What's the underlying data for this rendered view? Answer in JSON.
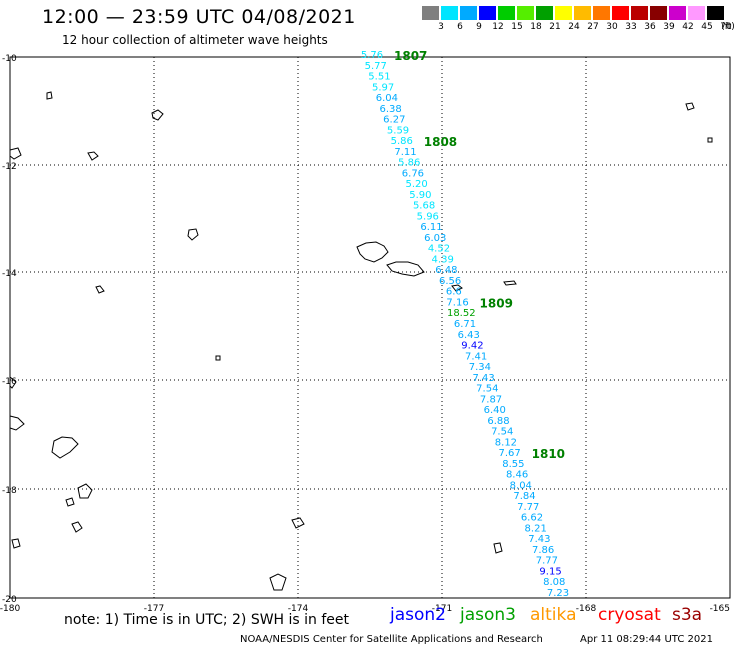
{
  "header": {
    "title": "12:00 — 23:59 UTC 04/08/2021",
    "subtitle": "12 hour collection of altimeter wave heights"
  },
  "scale": {
    "unit": "(ft)",
    "colors": [
      "#7f7f7f",
      "#00e5ff",
      "#00aaff",
      "#0000ff",
      "#00cc00",
      "#55ee00",
      "#00a000",
      "#ffff00",
      "#ffbb00",
      "#ff7700",
      "#ff0000",
      "#bb0000",
      "#880000",
      "#cc00cc",
      "#ff99ff",
      "#000000"
    ],
    "labels": [
      "3",
      "6",
      "9",
      "12",
      "15",
      "18",
      "21",
      "24",
      "27",
      "30",
      "33",
      "36",
      "39",
      "42",
      "45",
      "70"
    ]
  },
  "axes": {
    "lat_labels": [
      "-10",
      "-12",
      "-14",
      "-16",
      "-18",
      "-20"
    ],
    "lon_labels": [
      "-180",
      "-177",
      "-174",
      "-171",
      "-168",
      "-165"
    ]
  },
  "passes": [
    {
      "label": "1807",
      "color": "#008000"
    },
    {
      "label": "1808",
      "color": "#008000"
    },
    {
      "label": "1809",
      "color": "#008000"
    },
    {
      "label": "1810",
      "color": "#008000"
    }
  ],
  "wave_heights": [
    {
      "value": "5.76",
      "color": "#00e5ff"
    },
    {
      "value": "5.77",
      "color": "#00e5ff"
    },
    {
      "value": "5.51",
      "color": "#00e5ff"
    },
    {
      "value": "5.97",
      "color": "#00e5ff"
    },
    {
      "value": "6.04",
      "color": "#00aaff"
    },
    {
      "value": "6.38",
      "color": "#00aaff"
    },
    {
      "value": "6.27",
      "color": "#00aaff"
    },
    {
      "value": "5.59",
      "color": "#00e5ff"
    },
    {
      "value": "5.86",
      "color": "#00e5ff"
    },
    {
      "value": "7.11",
      "color": "#00aaff"
    },
    {
      "value": "5.86",
      "color": "#00e5ff"
    },
    {
      "value": "6.76",
      "color": "#00aaff"
    },
    {
      "value": "5.20",
      "color": "#00e5ff"
    },
    {
      "value": "5.90",
      "color": "#00e5ff"
    },
    {
      "value": "5.68",
      "color": "#00e5ff"
    },
    {
      "value": "5.96",
      "color": "#00e5ff"
    },
    {
      "value": "6.11",
      "color": "#00aaff"
    },
    {
      "value": "6.03",
      "color": "#00aaff"
    },
    {
      "value": "4.52",
      "color": "#00e5ff"
    },
    {
      "value": "4.39",
      "color": "#00e5ff"
    },
    {
      "value": "6.48",
      "color": "#00aaff"
    },
    {
      "value": "6.56",
      "color": "#00aaff"
    },
    {
      "value": "6.6",
      "color": "#00aaff"
    },
    {
      "value": "7.16",
      "color": "#00aaff"
    },
    {
      "value": "18.52",
      "color": "#00a000"
    },
    {
      "value": "6.71",
      "color": "#00aaff"
    },
    {
      "value": "6.43",
      "color": "#00aaff"
    },
    {
      "value": "9.42",
      "color": "#0000ff"
    },
    {
      "value": "7.41",
      "color": "#00aaff"
    },
    {
      "value": "7.34",
      "color": "#00aaff"
    },
    {
      "value": "7.43",
      "color": "#00aaff"
    },
    {
      "value": "7.54",
      "color": "#00aaff"
    },
    {
      "value": "7.87",
      "color": "#00aaff"
    },
    {
      "value": "6.40",
      "color": "#00aaff"
    },
    {
      "value": "6.88",
      "color": "#00aaff"
    },
    {
      "value": "7.54",
      "color": "#00aaff"
    },
    {
      "value": "8.12",
      "color": "#00aaff"
    },
    {
      "value": "7.67",
      "color": "#00aaff"
    },
    {
      "value": "8.55",
      "color": "#00aaff"
    },
    {
      "value": "8.46",
      "color": "#00aaff"
    },
    {
      "value": "8.04",
      "color": "#00aaff"
    },
    {
      "value": "7.84",
      "color": "#00aaff"
    },
    {
      "value": "7.77",
      "color": "#00aaff"
    },
    {
      "value": "6.62",
      "color": "#00aaff"
    },
    {
      "value": "8.21",
      "color": "#00aaff"
    },
    {
      "value": "7.43",
      "color": "#00aaff"
    },
    {
      "value": "7.86",
      "color": "#00aaff"
    },
    {
      "value": "7.77",
      "color": "#00aaff"
    },
    {
      "value": "9.15",
      "color": "#0000ff"
    },
    {
      "value": "8.08",
      "color": "#00aaff"
    },
    {
      "value": "7.23",
      "color": "#00aaff"
    }
  ],
  "footer": {
    "note": "note: 1) Time is in UTC; 2) SWH is in feet",
    "missions": [
      {
        "name": "jason2",
        "color": "#0000ff"
      },
      {
        "name": "jason3",
        "color": "#00a000"
      },
      {
        "name": "altika",
        "color": "#ff9900"
      },
      {
        "name": "cryosat",
        "color": "#ff0000"
      },
      {
        "name": "s3a",
        "color": "#990000"
      }
    ],
    "credit": "NOAA/NESDIS Center for Satellite Applications and Research",
    "timestamp": "Apr 11 08:29:44 UTC 2021"
  }
}
